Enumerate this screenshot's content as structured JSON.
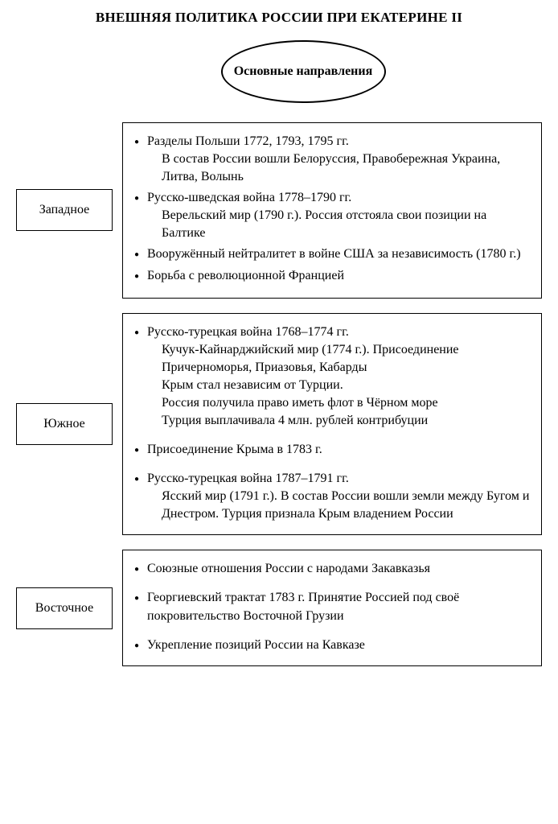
{
  "title": "ВНЕШНЯЯ ПОЛИТИКА РОССИИ ПРИ ЕКАТЕРИНЕ II",
  "center": "Основные направления",
  "sections": [
    {
      "label": "Западное",
      "items": [
        {
          "head": "Разделы Польши 1772, 1793, 1795 гг.",
          "sub": "В состав России вошли Белоруссия, Правобережная Украина, Литва, Волынь"
        },
        {
          "head": "Русско-шведская война 1778–1790 гг.",
          "sub": "Верельский мир (1790 г.). Россия отстояла свои позиции на Балтике"
        },
        {
          "head": "Вооружённый нейтралитет в войне США за независимость (1780 г.)"
        },
        {
          "head": "Борьба с революционной Францией"
        }
      ],
      "spaced": false
    },
    {
      "label": "Южное",
      "items": [
        {
          "head": "Русско-турецкая война 1768–1774 гг.",
          "sub": "Кучук-Кайнарджийский мир (1774 г.). Присоединение Причерноморья, Приазовья, Кабарды\nКрым стал независим от Турции.\nРоссия получила право иметь флот в Чёрном море\nТурция выплачивала 4 млн. рублей контрибуции"
        },
        {
          "head": "Присоединение Крыма в 1783 г."
        },
        {
          "head": "Русско-турецкая война 1787–1791 гг.",
          "sub": "Ясский мир (1791 г.). В состав России вошли земли между Бугом и Днестром. Турция признала Крым владением России"
        }
      ],
      "spaced": true
    },
    {
      "label": "Восточное",
      "items": [
        {
          "head": "Союзные отношения России с народами Закавказья"
        },
        {
          "head": "Георгиевский трактат 1783 г. Принятие Россией под своё покровительство Восточной Грузии"
        },
        {
          "head": "Укрепление позиций России на Кавказе"
        }
      ],
      "spaced": true
    }
  ],
  "colors": {
    "border": "#000000",
    "text": "#000000",
    "bg": "#ffffff"
  },
  "typography": {
    "base_fontsize": 16,
    "title_fontsize": 17,
    "font_family": "Georgia serif"
  }
}
